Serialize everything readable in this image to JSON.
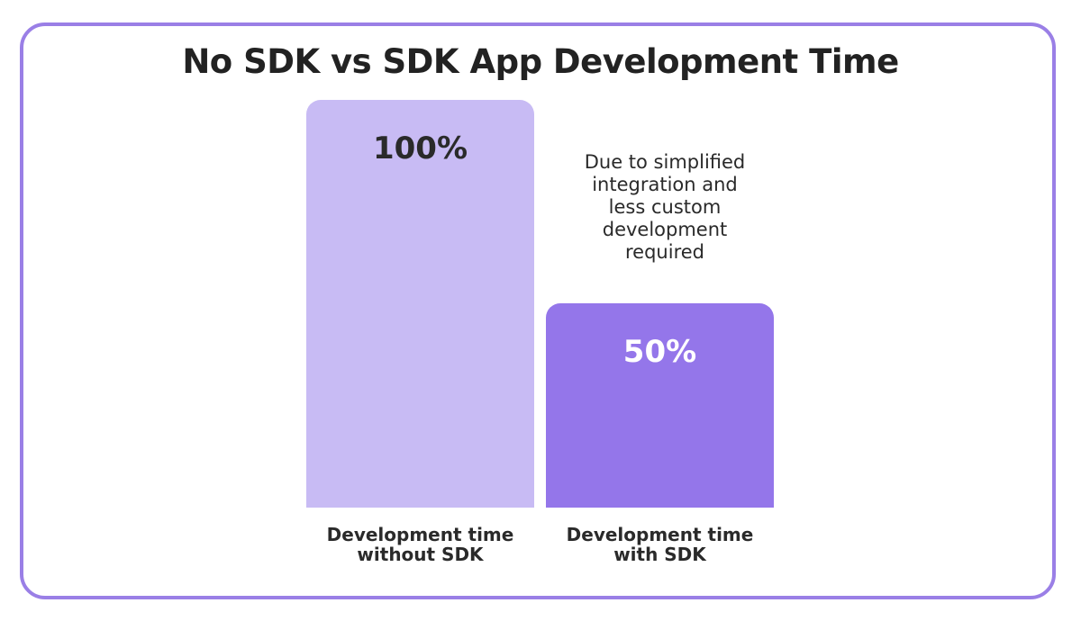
{
  "chart_data": {
    "type": "bar",
    "title": "No SDK vs SDK App Development Time",
    "categories": [
      "Development time\nwithout SDK",
      "Development time\nwith SDK"
    ],
    "values": [
      100,
      50
    ],
    "value_labels": [
      "100%",
      "50%"
    ],
    "ylim": [
      0,
      100
    ],
    "grid": false,
    "annotation": "Due to simplified\nintegration and\nless custom\ndevelopment\nrequired",
    "colors": {
      "bar_without_sdk": "#c8bbf4",
      "bar_with_sdk": "#9476ea",
      "value_text_without_sdk": "#2a2a2a",
      "value_text_with_sdk": "#ffffff",
      "frame_border": "#9a7fe6"
    }
  }
}
